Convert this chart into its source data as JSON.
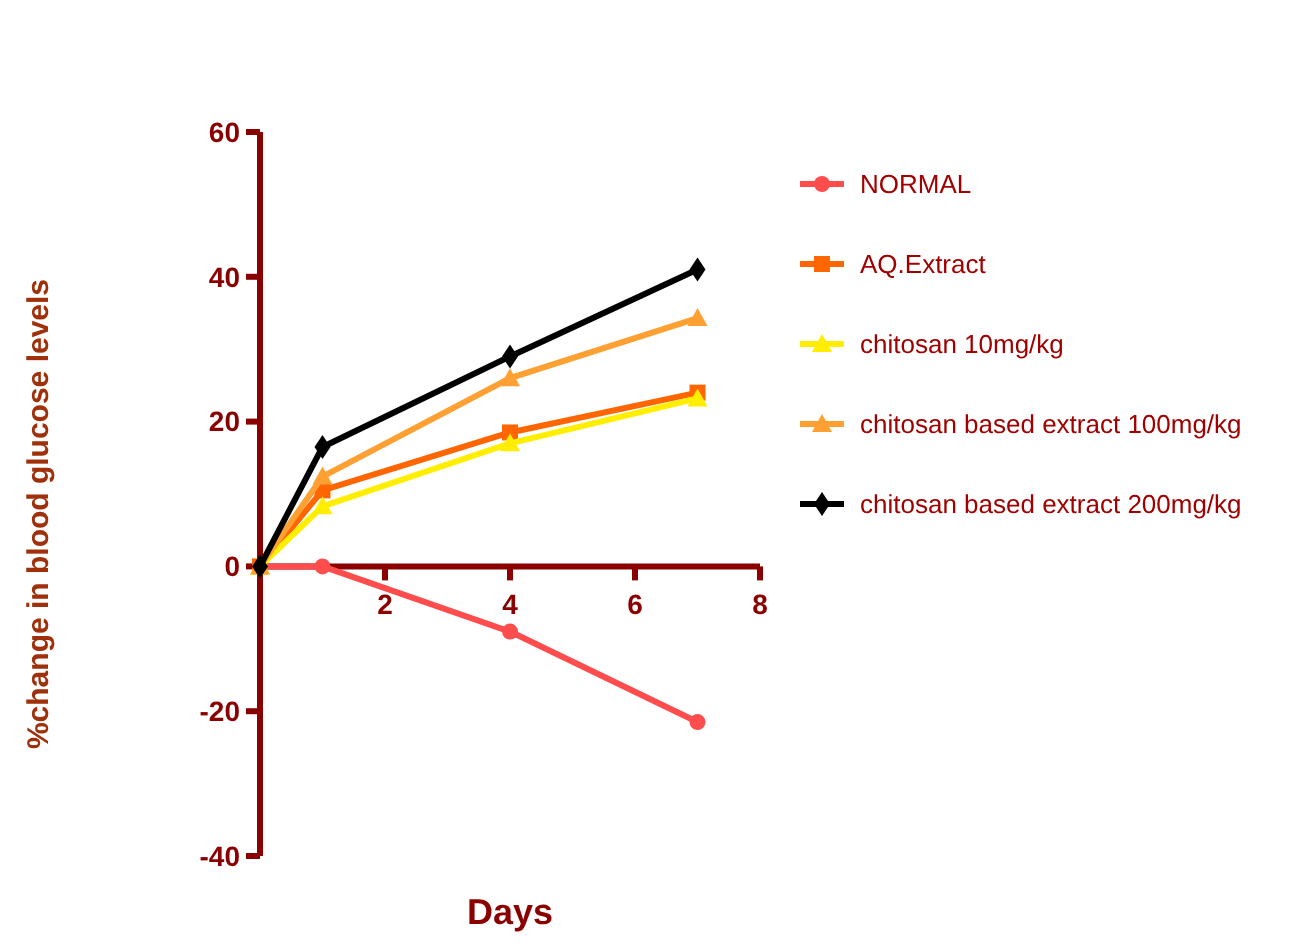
{
  "chart_data": {
    "type": "line",
    "xlabel": "Days",
    "ylabel": "%change in blood glucose levels",
    "x": [
      0,
      1,
      4,
      7
    ],
    "xlim": [
      0,
      8
    ],
    "xticks": [
      2,
      4,
      6,
      8
    ],
    "ylim": [
      -40,
      60
    ],
    "yticks": [
      -40,
      -20,
      0,
      20,
      40,
      60
    ],
    "grid": false,
    "legend": "right",
    "line_style": "solid",
    "series": [
      {
        "name": "NORMAL",
        "color": "#ff4d4d",
        "marker": "circle",
        "values": [
          0,
          0,
          -9,
          -21.5
        ]
      },
      {
        "name": "AQ.Extract",
        "color": "#ff6600",
        "marker": "square",
        "values": [
          0,
          10.5,
          18.5,
          24
        ]
      },
      {
        "name": "chitosan 10mg/kg",
        "color": "#ffee00",
        "marker": "triangle",
        "values": [
          0,
          8.3,
          17,
          23.2
        ]
      },
      {
        "name": "chitosan based extract 100mg/kg",
        "color": "#ffa033",
        "marker": "triangle",
        "values": [
          0,
          12.4,
          26,
          34.3
        ]
      },
      {
        "name": "chitosan based extract 200mg/kg",
        "color": "#000000",
        "marker": "diamond",
        "values": [
          0,
          16.5,
          29,
          41
        ]
      }
    ]
  }
}
